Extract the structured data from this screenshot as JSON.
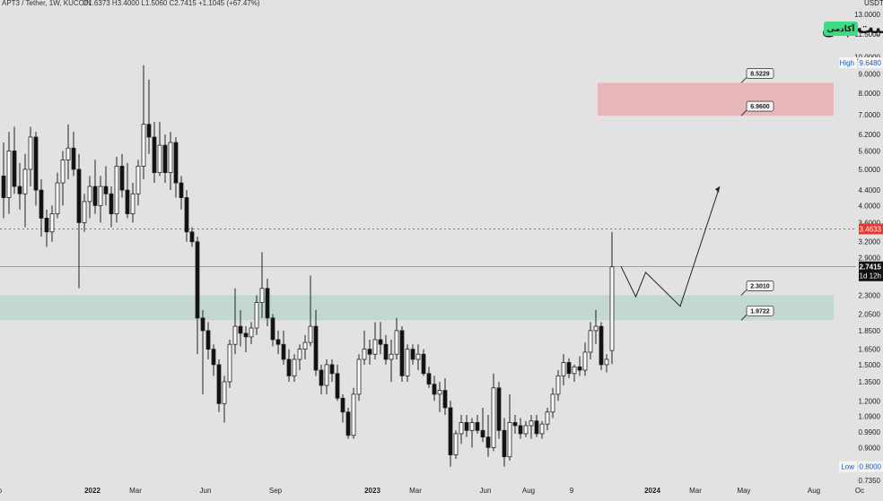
{
  "header": {
    "symbol": "APT3 / Tether, 1W, KUCOIN",
    "ohlc": "O1.6373  H3.4000  L1.5060  C2.7415  +1.1045 (+67.47%)"
  },
  "currency_label": "USDT",
  "logo": {
    "main": "بیت پین",
    "sub": "آکادمی"
  },
  "colors": {
    "background": "#e2e2e2",
    "up_body": "#ffffff",
    "down_body": "#111111",
    "wick": "#222222",
    "sell_zone": "#e8b7b9",
    "buy_zone": "#c4d8d3",
    "price_marker": "#e53935",
    "current_marker": "#111111",
    "resistance_line": "#e53935"
  },
  "chart_data": {
    "type": "candlestick",
    "scale": "log",
    "ylim": [
      0.735,
      13.0
    ],
    "y_ticks": [
      "13.0000",
      "11.5000",
      "10.0000",
      "9.0000",
      "8.0000",
      "7.0000",
      "6.2000",
      "5.6000",
      "5.0000",
      "4.4000",
      "4.0000",
      "3.6000",
      "3.2000",
      "2.9000",
      "2.3000",
      "2.0500",
      "1.8500",
      "1.6500",
      "1.5000",
      "1.3500",
      "1.2000",
      "1.0900",
      "0.9900",
      "0.9000",
      "0.8000",
      "0.7350"
    ],
    "x_ticks": [
      {
        "label": "Sep",
        "i": -1.5
      },
      {
        "label": "2022",
        "i": 16.5
      },
      {
        "label": "Mar",
        "i": 24.5
      },
      {
        "label": "Jun",
        "i": 37.5
      },
      {
        "label": "Sep",
        "i": 50.5
      },
      {
        "label": "2023",
        "i": 68.5
      },
      {
        "label": "Mar",
        "i": 76.5
      },
      {
        "label": "Jun",
        "i": 89.5
      },
      {
        "label": "Aug",
        "i": 97.5
      },
      {
        "label": "9",
        "i": 105.5
      },
      {
        "label": "2024",
        "i": 120.5
      },
      {
        "label": "Mar",
        "i": 128.5
      },
      {
        "label": "May",
        "i": 137.5
      },
      {
        "label": "Aug",
        "i": 150.5
      },
      {
        "label": "Oc",
        "i": 159
      }
    ],
    "candles": [
      [
        4.8,
        5.9,
        3.7,
        4.2
      ],
      [
        4.2,
        6.3,
        3.8,
        5.6
      ],
      [
        5.6,
        6.5,
        4.3,
        4.5
      ],
      [
        4.5,
        5.2,
        3.9,
        4.3
      ],
      [
        4.3,
        5.5,
        3.5,
        5.0
      ],
      [
        5.0,
        6.5,
        4.5,
        6.1
      ],
      [
        6.1,
        6.3,
        4.0,
        4.4
      ],
      [
        4.4,
        4.7,
        3.3,
        3.7
      ],
      [
        3.7,
        3.9,
        3.1,
        3.4
      ],
      [
        3.4,
        4.0,
        3.2,
        3.8
      ],
      [
        3.8,
        4.9,
        3.7,
        4.6
      ],
      [
        4.6,
        5.6,
        4.0,
        5.3
      ],
      [
        5.3,
        6.6,
        4.7,
        5.7
      ],
      [
        5.7,
        6.3,
        4.8,
        5.0
      ],
      [
        5.0,
        5.5,
        2.4,
        3.6
      ],
      [
        3.6,
        4.3,
        3.4,
        4.1
      ],
      [
        4.1,
        4.8,
        3.7,
        4.5
      ],
      [
        4.5,
        5.3,
        3.8,
        4.0
      ],
      [
        4.0,
        4.8,
        3.6,
        4.5
      ],
      [
        4.5,
        5.1,
        4.0,
        4.3
      ],
      [
        4.3,
        4.5,
        3.5,
        3.8
      ],
      [
        3.8,
        5.4,
        3.6,
        5.1
      ],
      [
        5.1,
        5.5,
        4.2,
        4.4
      ],
      [
        4.4,
        5.2,
        3.7,
        3.8
      ],
      [
        3.8,
        4.6,
        3.6,
        4.3
      ],
      [
        4.3,
        5.3,
        4.0,
        5.1
      ],
      [
        5.1,
        9.5,
        4.7,
        6.6
      ],
      [
        6.6,
        8.7,
        5.5,
        6.1
      ],
      [
        6.1,
        6.7,
        4.6,
        4.9
      ],
      [
        4.9,
        6.7,
        4.8,
        5.8
      ],
      [
        5.8,
        6.2,
        4.6,
        4.9
      ],
      [
        4.9,
        6.3,
        4.4,
        5.9
      ],
      [
        5.9,
        6.1,
        4.2,
        4.6
      ],
      [
        4.6,
        4.8,
        3.9,
        4.2
      ],
      [
        4.2,
        4.4,
        3.2,
        3.4
      ],
      [
        3.4,
        3.5,
        3.1,
        3.2
      ],
      [
        3.2,
        3.3,
        1.6,
        2.0
      ],
      [
        2.0,
        2.1,
        1.25,
        1.85
      ],
      [
        1.85,
        1.95,
        1.55,
        1.65
      ],
      [
        1.65,
        1.7,
        1.4,
        1.5
      ],
      [
        1.5,
        1.55,
        1.12,
        1.18
      ],
      [
        1.18,
        1.4,
        1.05,
        1.35
      ],
      [
        1.35,
        1.75,
        1.3,
        1.7
      ],
      [
        1.7,
        2.4,
        1.6,
        1.9
      ],
      [
        1.9,
        2.1,
        1.68,
        1.82
      ],
      [
        1.82,
        1.9,
        1.62,
        1.78
      ],
      [
        1.78,
        1.95,
        1.7,
        1.88
      ],
      [
        1.88,
        2.3,
        1.8,
        2.2
      ],
      [
        2.2,
        3.0,
        2.0,
        2.4
      ],
      [
        2.4,
        2.55,
        1.9,
        2.0
      ],
      [
        2.0,
        2.05,
        1.68,
        1.75
      ],
      [
        1.75,
        1.85,
        1.6,
        1.7
      ],
      [
        1.7,
        1.85,
        1.5,
        1.55
      ],
      [
        1.55,
        1.65,
        1.35,
        1.4
      ],
      [
        1.4,
        1.6,
        1.35,
        1.55
      ],
      [
        1.55,
        1.7,
        1.45,
        1.65
      ],
      [
        1.65,
        1.8,
        1.55,
        1.72
      ],
      [
        1.72,
        2.6,
        1.68,
        1.9
      ],
      [
        1.9,
        2.1,
        1.4,
        1.45
      ],
      [
        1.45,
        1.5,
        1.25,
        1.32
      ],
      [
        1.32,
        1.55,
        1.25,
        1.5
      ],
      [
        1.5,
        1.55,
        1.35,
        1.42
      ],
      [
        1.42,
        1.5,
        1.2,
        1.22
      ],
      [
        1.22,
        1.25,
        1.05,
        1.12
      ],
      [
        1.12,
        1.15,
        0.95,
        0.97
      ],
      [
        0.97,
        1.3,
        0.95,
        1.25
      ],
      [
        1.25,
        1.6,
        1.2,
        1.55
      ],
      [
        1.55,
        1.85,
        1.5,
        1.65
      ],
      [
        1.65,
        1.75,
        1.5,
        1.6
      ],
      [
        1.6,
        1.95,
        1.55,
        1.75
      ],
      [
        1.75,
        1.95,
        1.6,
        1.7
      ],
      [
        1.7,
        1.8,
        1.5,
        1.55
      ],
      [
        1.55,
        1.75,
        1.35,
        1.6
      ],
      [
        1.6,
        2.0,
        1.55,
        1.85
      ],
      [
        1.85,
        1.9,
        1.35,
        1.4
      ],
      [
        1.4,
        1.7,
        1.35,
        1.65
      ],
      [
        1.65,
        1.7,
        1.5,
        1.55
      ],
      [
        1.55,
        1.7,
        1.45,
        1.6
      ],
      [
        1.6,
        1.65,
        1.4,
        1.42
      ],
      [
        1.42,
        1.48,
        1.3,
        1.33
      ],
      [
        1.33,
        1.4,
        1.2,
        1.25
      ],
      [
        1.25,
        1.35,
        1.12,
        1.28
      ],
      [
        1.28,
        1.38,
        1.1,
        1.15
      ],
      [
        1.15,
        1.2,
        0.8,
        0.86
      ],
      [
        0.86,
        1.0,
        0.84,
        0.98
      ],
      [
        0.98,
        1.1,
        0.92,
        1.05
      ],
      [
        1.05,
        1.1,
        0.96,
        1.0
      ],
      [
        1.0,
        1.08,
        0.9,
        1.05
      ],
      [
        1.05,
        1.1,
        0.98,
        1.0
      ],
      [
        1.0,
        1.15,
        0.93,
        0.96
      ],
      [
        0.96,
        1.1,
        0.85,
        0.9
      ],
      [
        0.9,
        1.42,
        0.88,
        1.3
      ],
      [
        1.3,
        1.35,
        0.95,
        1.0
      ],
      [
        1.0,
        1.08,
        0.8,
        0.85
      ],
      [
        0.85,
        1.25,
        0.83,
        1.05
      ],
      [
        1.05,
        1.1,
        0.98,
        1.03
      ],
      [
        1.03,
        1.08,
        0.95,
        0.98
      ],
      [
        0.98,
        1.06,
        0.96,
        1.03
      ],
      [
        1.03,
        1.1,
        0.95,
        1.06
      ],
      [
        1.06,
        1.1,
        0.96,
        0.98
      ],
      [
        0.98,
        1.06,
        0.95,
        1.04
      ],
      [
        1.04,
        1.15,
        1.0,
        1.12
      ],
      [
        1.12,
        1.3,
        1.08,
        1.25
      ],
      [
        1.25,
        1.45,
        1.2,
        1.4
      ],
      [
        1.4,
        1.6,
        1.32,
        1.52
      ],
      [
        1.52,
        1.56,
        1.38,
        1.42
      ],
      [
        1.42,
        1.5,
        1.35,
        1.48
      ],
      [
        1.48,
        1.58,
        1.4,
        1.45
      ],
      [
        1.45,
        1.72,
        1.4,
        1.62
      ],
      [
        1.62,
        1.95,
        1.55,
        1.85
      ],
      [
        1.85,
        2.1,
        1.7,
        1.9
      ],
      [
        1.9,
        1.95,
        1.45,
        1.5
      ],
      [
        1.5,
        1.6,
        1.43,
        1.55
      ],
      [
        1.637,
        3.4,
        1.506,
        2.7415
      ]
    ],
    "forecast_path": [
      [
        2.75,
        0
      ],
      [
        2.28,
        1.5
      ],
      [
        2.65,
        2.5
      ],
      [
        2.15,
        6
      ],
      [
        4.5,
        10
      ]
    ],
    "high": {
      "label": "High",
      "value": "9.6480"
    },
    "low": {
      "label": "Low",
      "value": "0.8000"
    },
    "current_price": {
      "value": "2.7415",
      "countdown": "1d 12h"
    },
    "resistance": {
      "value": "3.4633"
    },
    "zones": [
      {
        "name": "sell-zone",
        "top": 8.5229,
        "bottom": 6.96,
        "label_top": "8.5229",
        "label_bottom": "6.9600"
      },
      {
        "name": "buy-zone",
        "top": 2.301,
        "bottom": 1.9722,
        "label_top": "2.3010",
        "label_bottom": "1.9722"
      }
    ]
  }
}
